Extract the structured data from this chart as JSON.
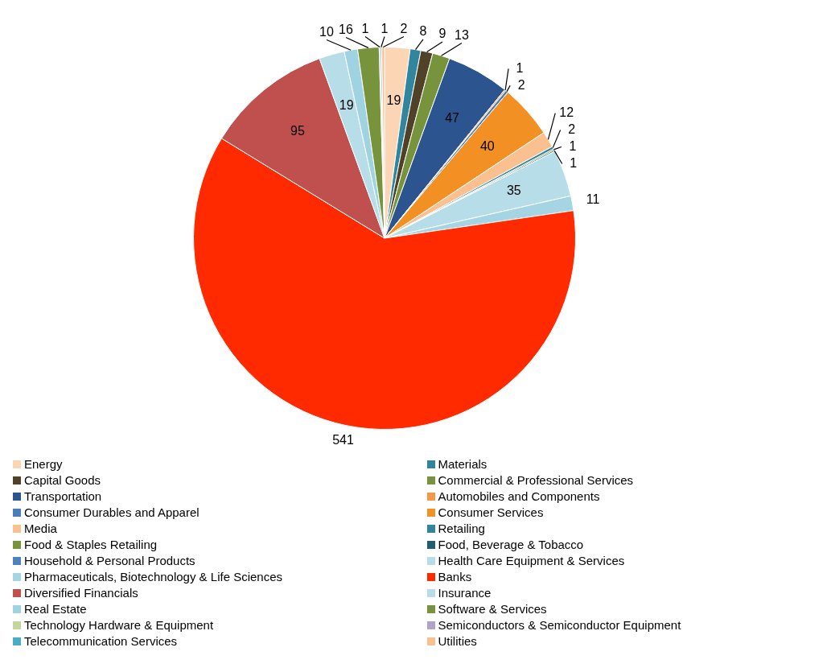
{
  "chart_data": {
    "type": "pie",
    "categories": [
      "Energy",
      "Materials",
      "Capital Goods",
      "Commercial & Professional Services",
      "Transportation",
      "Automobiles and Components",
      "Consumer Durables and Apparel",
      "Consumer Services",
      "Media",
      "Retailing",
      "Food & Staples Retailing",
      "Food, Beverage & Tobacco",
      "Household & Personal Products",
      "Health Care Equipment & Services",
      "Pharmaceuticals, Biotechnology & Life Sciences",
      "Banks",
      "Diversified Financials",
      "Insurance",
      "Real Estate",
      "Software & Services",
      "Technology Hardware & Equipment",
      "Semiconductors & Semiconductor Equipment",
      "Telecommunication Services",
      "Utilities"
    ],
    "values": [
      19,
      8,
      9,
      13,
      47,
      1,
      2,
      40,
      12,
      2,
      1,
      1,
      0,
      35,
      11,
      541,
      95,
      19,
      10,
      16,
      0,
      1,
      1,
      2
    ],
    "colors": [
      "#fcd5b5",
      "#31859c",
      "#4f4228",
      "#77933c",
      "#2c5590",
      "#f79646",
      "#4a7ebb",
      "#f39024",
      "#fac090",
      "#31859c",
      "#77933c",
      "#1f5f6f",
      "#4f81bd",
      "#b7dee8",
      "#a5d5e2",
      "#ff2a00",
      "#c0504d",
      "#b7dee8",
      "#9fd3e2",
      "#77933c",
      "#c3d69b",
      "#b3a2c7",
      "#4bacc6",
      "#fac090"
    ],
    "data_labels": true,
    "legend": "bottom"
  }
}
